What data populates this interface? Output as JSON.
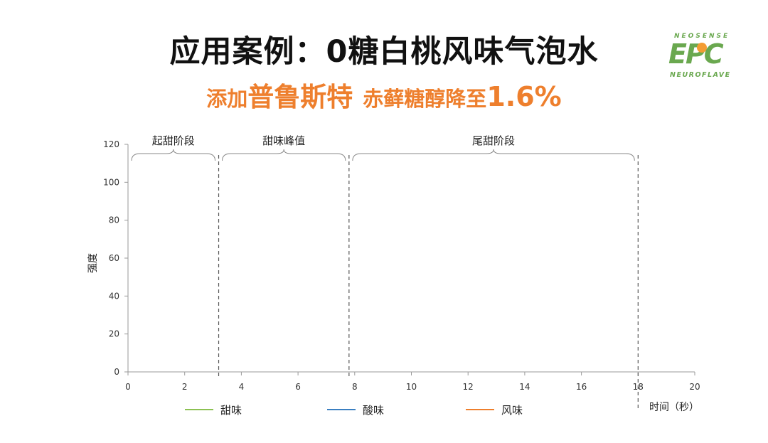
{
  "header": {
    "title": "应用案例：0糖白桃风味气泡水",
    "subtitle_part1": "添加",
    "subtitle_part2": "普鲁斯特",
    "subtitle_part3": "赤藓糖醇降至",
    "subtitle_part4": "1.6%"
  },
  "logo": {
    "top_text": "NEOSENSE",
    "big_text": "EPC",
    "bottom_text": "NEUROFLAVE",
    "color": "#6aa84f"
  },
  "chart_data": {
    "type": "line",
    "title": "",
    "xlabel": "时间（秒）",
    "ylabel": "强度",
    "xlim": [
      0,
      20
    ],
    "ylim": [
      0,
      120
    ],
    "x_ticks": [
      0,
      2,
      4,
      6,
      8,
      10,
      12,
      14,
      16,
      18,
      20
    ],
    "y_ticks": [
      0,
      20,
      40,
      60,
      80,
      100,
      120
    ],
    "series": [
      {
        "name": "甜味",
        "color": "#8cc152",
        "x": [],
        "values": []
      },
      {
        "name": "酸味",
        "color": "#3a7fc1",
        "x": [],
        "values": []
      },
      {
        "name": "风味",
        "color": "#ee7f2d",
        "x": [],
        "values": []
      }
    ],
    "phases": [
      {
        "label": "起甜阶段",
        "start": 0,
        "end": 3.2
      },
      {
        "label": "甜味峰值",
        "start": 3.2,
        "end": 7.8
      },
      {
        "label": "尾甜阶段",
        "start": 7.8,
        "end": 18
      }
    ],
    "dividers": [
      3.2,
      7.8,
      18
    ],
    "legend_position": "bottom",
    "grid": false
  }
}
